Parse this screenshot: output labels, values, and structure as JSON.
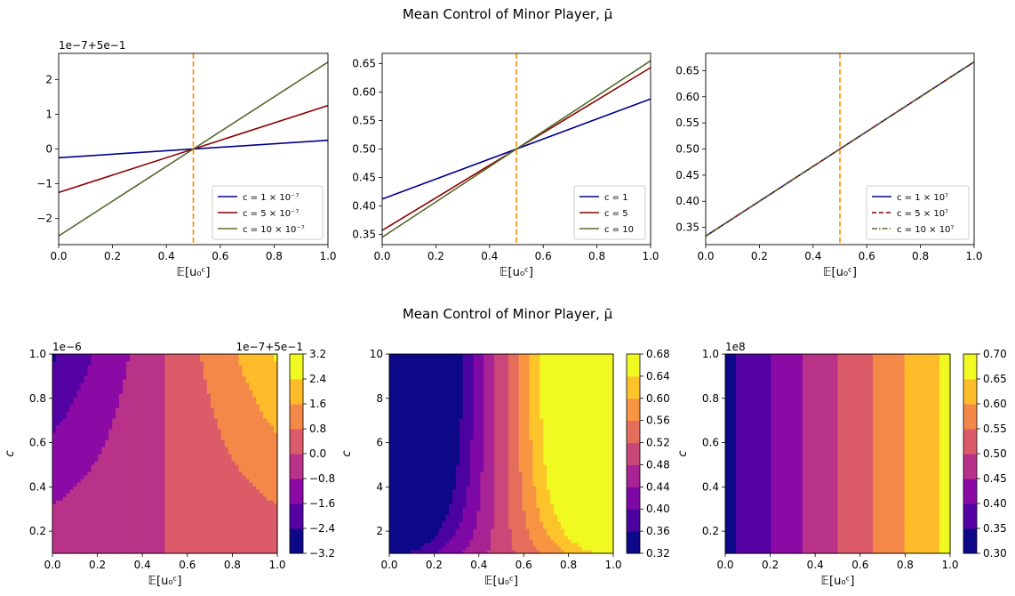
{
  "titles": {
    "top": "Mean Control of Minor Player, μ̄",
    "bottom": "Mean Control of Minor Player, μ̄"
  },
  "chart_data": [
    {
      "type": "line",
      "xlabel": "𝔼[u₀ᶜ]",
      "ylabel": "",
      "offset_label": "1e−7+5e−1",
      "xlim": [
        0,
        1
      ],
      "ylim": [
        -2.75,
        2.75
      ],
      "xticks": [
        "0.0",
        "0.2",
        "0.4",
        "0.6",
        "0.8",
        "1.0"
      ],
      "yticks": [
        "−2",
        "−1",
        "0",
        "1",
        "2"
      ],
      "vline": {
        "x": 0.5,
        "color": "#ff8c00"
      },
      "legend_position": "lower right",
      "series": [
        {
          "name": "c = 1 × 10⁻⁷",
          "color": "#00008b",
          "style": "solid",
          "x": [
            0,
            1
          ],
          "y": [
            -0.25,
            0.25
          ]
        },
        {
          "name": "c = 5 × 10⁻⁷",
          "color": "#8b0000",
          "style": "solid",
          "x": [
            0,
            1
          ],
          "y": [
            -1.25,
            1.25
          ]
        },
        {
          "name": "c = 10 × 10⁻⁷",
          "color": "#556b2f",
          "style": "solid",
          "x": [
            0,
            1
          ],
          "y": [
            -2.5,
            2.5
          ]
        }
      ]
    },
    {
      "type": "line",
      "xlabel": "𝔼[u₀ᶜ]",
      "ylabel": "",
      "xlim": [
        0,
        1
      ],
      "ylim": [
        0.332,
        0.668
      ],
      "xticks": [
        "0.0",
        "0.2",
        "0.4",
        "0.6",
        "0.8",
        "1.0"
      ],
      "yticks": [
        "0.35",
        "0.40",
        "0.45",
        "0.50",
        "0.55",
        "0.60",
        "0.65"
      ],
      "vline": {
        "x": 0.5,
        "color": "#ff8c00"
      },
      "legend_position": "lower right",
      "series": [
        {
          "name": "c = 1",
          "color": "#00008b",
          "style": "solid",
          "x": [
            0,
            1
          ],
          "y": [
            0.412,
            0.588
          ]
        },
        {
          "name": "c = 5",
          "color": "#8b0000",
          "style": "solid",
          "x": [
            0,
            1
          ],
          "y": [
            0.357,
            0.643
          ]
        },
        {
          "name": "c = 10",
          "color": "#556b2f",
          "style": "solid",
          "x": [
            0,
            1
          ],
          "y": [
            0.345,
            0.655
          ]
        }
      ]
    },
    {
      "type": "line",
      "xlabel": "𝔼[u₀ᶜ]",
      "ylabel": "",
      "xlim": [
        0,
        1
      ],
      "ylim": [
        0.317,
        0.683
      ],
      "xticks": [
        "0.0",
        "0.2",
        "0.4",
        "0.6",
        "0.8",
        "1.0"
      ],
      "yticks": [
        "0.35",
        "0.40",
        "0.45",
        "0.50",
        "0.55",
        "0.60",
        "0.65"
      ],
      "vline": {
        "x": 0.5,
        "color": "#ff8c00"
      },
      "legend_position": "lower right",
      "series": [
        {
          "name": "c = 1 × 10⁷",
          "color": "#00008b",
          "style": "solid",
          "x": [
            0,
            1
          ],
          "y": [
            0.3333,
            0.6667
          ]
        },
        {
          "name": "c = 5 × 10⁷",
          "color": "#8b0000",
          "style": "dashed",
          "x": [
            0,
            1
          ],
          "y": [
            0.3333,
            0.6667
          ]
        },
        {
          "name": "c = 10 × 10⁷",
          "color": "#556b2f",
          "style": "dashdot",
          "x": [
            0,
            1
          ],
          "y": [
            0.3333,
            0.6667
          ]
        }
      ]
    },
    {
      "type": "heatmap",
      "subtype": "contourf",
      "colormap": "plasma",
      "xlabel": "𝔼[u₀ᶜ]",
      "ylabel": "c",
      "y_offset_label": "1e−6",
      "cbar_offset_label": "1e−7+5e−1",
      "xlim": [
        0,
        1
      ],
      "ylim": [
        0.1,
        1.0
      ],
      "xticks": [
        "0.0",
        "0.2",
        "0.4",
        "0.6",
        "0.8",
        "1.0"
      ],
      "yticks": [
        "0.2",
        "0.4",
        "0.6",
        "0.8",
        "1.0"
      ],
      "levels": [
        -3.2,
        -2.4,
        -1.6,
        -0.8,
        0.0,
        0.8,
        1.6,
        2.4,
        3.2
      ],
      "level_labels": [
        "−3.2",
        "−2.4",
        "−1.6",
        "−0.8",
        "0.0",
        "0.8",
        "1.6",
        "2.4",
        "3.2"
      ]
    },
    {
      "type": "heatmap",
      "subtype": "contourf",
      "colormap": "plasma",
      "xlabel": "𝔼[u₀ᶜ]",
      "ylabel": "c",
      "xlim": [
        0,
        1
      ],
      "ylim": [
        1,
        10
      ],
      "xticks": [
        "0.0",
        "0.2",
        "0.4",
        "0.6",
        "0.8",
        "1.0"
      ],
      "yticks": [
        "2",
        "4",
        "6",
        "8",
        "10"
      ],
      "levels": [
        0.32,
        0.36,
        0.4,
        0.44,
        0.48,
        0.52,
        0.56,
        0.6,
        0.64,
        0.68
      ],
      "level_labels": [
        "0.32",
        "0.36",
        "0.40",
        "0.44",
        "0.48",
        "0.52",
        "0.56",
        "0.60",
        "0.64",
        "0.68"
      ]
    },
    {
      "type": "heatmap",
      "subtype": "contourf",
      "colormap": "plasma",
      "xlabel": "𝔼[u₀ᶜ]",
      "ylabel": "c",
      "y_offset_label": "1e8",
      "xlim": [
        0,
        1
      ],
      "ylim": [
        0.1,
        1.0
      ],
      "xticks": [
        "0.0",
        "0.2",
        "0.4",
        "0.6",
        "0.8",
        "1.0"
      ],
      "yticks": [
        "0.2",
        "0.4",
        "0.6",
        "0.8",
        "1.0"
      ],
      "levels": [
        0.3,
        0.35,
        0.4,
        0.45,
        0.5,
        0.55,
        0.6,
        0.65,
        0.7
      ],
      "level_labels": [
        "0.30",
        "0.35",
        "0.40",
        "0.45",
        "0.50",
        "0.55",
        "0.60",
        "0.65",
        "0.70"
      ]
    }
  ]
}
